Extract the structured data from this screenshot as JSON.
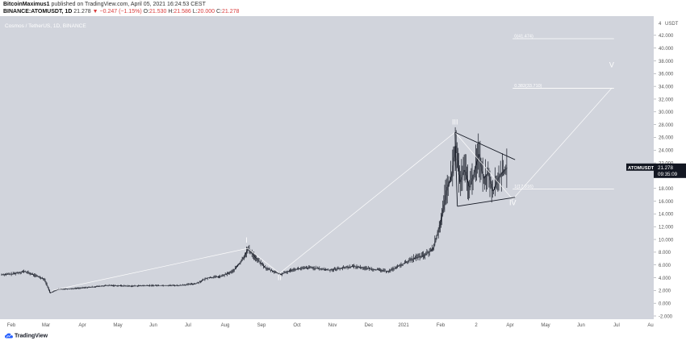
{
  "header": {
    "author": "BitcoinMaximus1",
    "published_text": "published on TradingView.com, April 05, 2021 16:24:53 CEST",
    "symbol": "BINANCE:ATOMUSDT, 1D",
    "last": "21.278",
    "change": "▼ −0.247 (−1.15%)",
    "ohlc": [
      {
        "k": "O:",
        "v": "21.530"
      },
      {
        "k": "H:",
        "v": "21.586"
      },
      {
        "k": "L:",
        "v": "20.000"
      },
      {
        "k": "C:",
        "v": "21.278"
      }
    ]
  },
  "footer": {
    "brand": "TradingView"
  },
  "colors": {
    "background": "#d1d4dc",
    "candles": "#131722",
    "drawings": "#ffffff",
    "triangle": "#131722",
    "price_label_bg": "#131722",
    "price_down": "#d93b3b"
  },
  "chart_data": {
    "type": "candlestick",
    "title": "Cosmos / TetherUS, 1D, BINANCE",
    "x_labels": [
      "Feb",
      "Mar",
      "Apr",
      "May",
      "Jun",
      "Jul",
      "Aug",
      "Sep",
      "Oct",
      "Nov",
      "Dec",
      "2021",
      "Feb",
      "2",
      "Apr",
      "May",
      "Jun",
      "Jul",
      "Au"
    ],
    "x_start": "2020-02-01",
    "x_end": "2021-08-05",
    "ylim": [
      -2,
      44
    ],
    "y_ticks": [
      "-2.000",
      "0.000",
      "2.000",
      "4.000",
      "6.000",
      "8.000",
      "10.000",
      "12.000",
      "14.000",
      "16.000",
      "18.000",
      "20.000",
      "22.000",
      "24.000",
      "26.000",
      "28.000",
      "30.000",
      "32.000",
      "34.000",
      "36.000",
      "38.000",
      "40.000",
      "42.000"
    ],
    "y_top_label": "4",
    "y_unit": "USDT",
    "last_price": {
      "symbol": "ATOMUSDT",
      "value": "21.278",
      "timer": "09:35:09"
    },
    "series": [
      {
        "path": [
          [
            "2020-02-01",
            4.5
          ],
          [
            "2020-02-10",
            4.6
          ],
          [
            "2020-02-20",
            5.0
          ],
          [
            "2020-03-01",
            4.3
          ],
          [
            "2020-03-08",
            3.8
          ],
          [
            "2020-03-13",
            1.6
          ],
          [
            "2020-03-20",
            2.2
          ],
          [
            "2020-04-01",
            2.3
          ],
          [
            "2020-04-15",
            2.5
          ],
          [
            "2020-05-01",
            2.8
          ],
          [
            "2020-05-20",
            2.7
          ],
          [
            "2020-06-10",
            2.8
          ],
          [
            "2020-07-01",
            2.8
          ],
          [
            "2020-07-15",
            3.1
          ],
          [
            "2020-07-25",
            4.0
          ],
          [
            "2020-08-05",
            4.2
          ],
          [
            "2020-08-15",
            5.0
          ],
          [
            "2020-08-22",
            6.5
          ],
          [
            "2020-08-28",
            8.5
          ],
          [
            "2020-09-04",
            7.0
          ],
          [
            "2020-09-12",
            5.5
          ],
          [
            "2020-09-25",
            4.5
          ],
          [
            "2020-10-05",
            5.3
          ],
          [
            "2020-10-20",
            5.6
          ],
          [
            "2020-11-05",
            5.2
          ],
          [
            "2020-11-25",
            5.8
          ],
          [
            "2020-12-10",
            5.4
          ],
          [
            "2020-12-25",
            5.0
          ],
          [
            "2021-01-05",
            6.0
          ],
          [
            "2021-01-15",
            7.0
          ],
          [
            "2021-01-25",
            7.5
          ],
          [
            "2021-02-01",
            8.5
          ],
          [
            "2021-02-05",
            11.0
          ],
          [
            "2021-02-09",
            14.0
          ],
          [
            "2021-02-13",
            18.0
          ],
          [
            "2021-02-17",
            20.0
          ],
          [
            "2021-02-20",
            25.0
          ],
          [
            "2021-02-24",
            19.0
          ],
          [
            "2021-02-28",
            21.0
          ],
          [
            "2021-03-04",
            18.0
          ],
          [
            "2021-03-08",
            20.5
          ],
          [
            "2021-03-12",
            23.5
          ],
          [
            "2021-03-16",
            19.5
          ],
          [
            "2021-03-20",
            20.5
          ],
          [
            "2021-03-24",
            17.5
          ],
          [
            "2021-03-28",
            19.5
          ],
          [
            "2021-04-01",
            20.5
          ],
          [
            "2021-04-05",
            21.278
          ]
        ]
      }
    ],
    "annotations": {
      "fib_levels": [
        {
          "label": "0(41.474)",
          "value": 41.474
        },
        {
          "label": "0.382(33.710)",
          "value": 33.71
        },
        {
          "label": "1(17.916)",
          "value": 17.916
        }
      ],
      "wave_labels": [
        {
          "text": "I",
          "x": "2020-08-27",
          "y": 9.5
        },
        {
          "text": "II",
          "x": "2020-09-24",
          "y": 3.6
        },
        {
          "text": "III",
          "x": "2021-02-20",
          "y": 28.0
        },
        {
          "text": "IV",
          "x": "2021-04-10",
          "y": 15.4
        },
        {
          "text": "V",
          "x": "2021-07-03",
          "y": 37.0
        }
      ],
      "wave_path": [
        [
          "2020-03-15",
          2.0
        ],
        [
          "2020-08-28",
          8.6
        ],
        [
          "2020-09-24",
          4.7
        ],
        [
          "2021-02-20",
          26.8
        ],
        [
          "2021-04-10",
          16.3
        ],
        [
          "2021-07-03",
          33.7
        ]
      ],
      "triangle": {
        "upper": [
          [
            "2021-02-20",
            26.8
          ],
          [
            "2021-04-12",
            22.5
          ]
        ],
        "lower": [
          [
            "2021-02-22",
            15.2
          ],
          [
            "2021-04-12",
            16.6
          ]
        ],
        "left": [
          [
            "2021-02-20",
            26.8
          ],
          [
            "2021-02-22",
            15.2
          ]
        ]
      }
    }
  }
}
